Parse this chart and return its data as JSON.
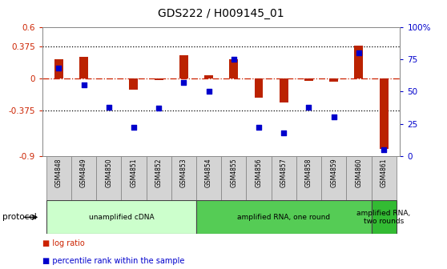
{
  "title": "GDS222 / H009145_01",
  "samples": [
    "GSM4848",
    "GSM4849",
    "GSM4850",
    "GSM4851",
    "GSM4852",
    "GSM4853",
    "GSM4854",
    "GSM4855",
    "GSM4856",
    "GSM4857",
    "GSM4858",
    "GSM4859",
    "GSM4860",
    "GSM4861"
  ],
  "log_ratio": [
    0.22,
    0.25,
    0.0,
    -0.13,
    -0.02,
    0.27,
    0.04,
    0.22,
    -0.22,
    -0.28,
    -0.03,
    -0.04,
    0.38,
    -0.82
  ],
  "percentile": [
    68,
    55,
    38,
    22,
    37,
    57,
    50,
    75,
    22,
    18,
    38,
    30,
    80,
    5
  ],
  "bar_color": "#bb2200",
  "dot_color": "#0000cc",
  "background_color": "#ffffff",
  "ylim_left": [
    -0.9,
    0.6
  ],
  "ylim_right": [
    0,
    100
  ],
  "yticks_left": [
    -0.9,
    -0.375,
    0.0,
    0.375,
    0.6
  ],
  "yticks_right": [
    0,
    25,
    50,
    75,
    100
  ],
  "ytick_labels_left": [
    "-0.9",
    "-0.375",
    "0",
    "0.375",
    "0.6"
  ],
  "ytick_labels_right": [
    "0",
    "25",
    "50",
    "75",
    "100%"
  ],
  "hlines": [
    0.375,
    -0.375
  ],
  "zero_line_color": "#cc2200",
  "dotted_line_color": "#000000",
  "protocol_groups": [
    {
      "label": "unamplified cDNA",
      "start": 0,
      "end": 5,
      "color": "#ccffcc"
    },
    {
      "label": "amplified RNA, one round",
      "start": 6,
      "end": 12,
      "color": "#55cc55"
    },
    {
      "label": "amplified RNA,\ntwo rounds",
      "start": 13,
      "end": 13,
      "color": "#33bb33"
    }
  ],
  "protocol_label": "protocol",
  "legend_items": [
    {
      "label": "log ratio",
      "color": "#cc2200"
    },
    {
      "label": "percentile rank within the sample",
      "color": "#0000cc"
    }
  ],
  "bar_width": 0.35,
  "title_fontsize": 10,
  "tick_fontsize": 7.5,
  "label_fontsize": 6.5,
  "axis_label_color_left": "#cc2200",
  "axis_label_color_right": "#0000cc"
}
